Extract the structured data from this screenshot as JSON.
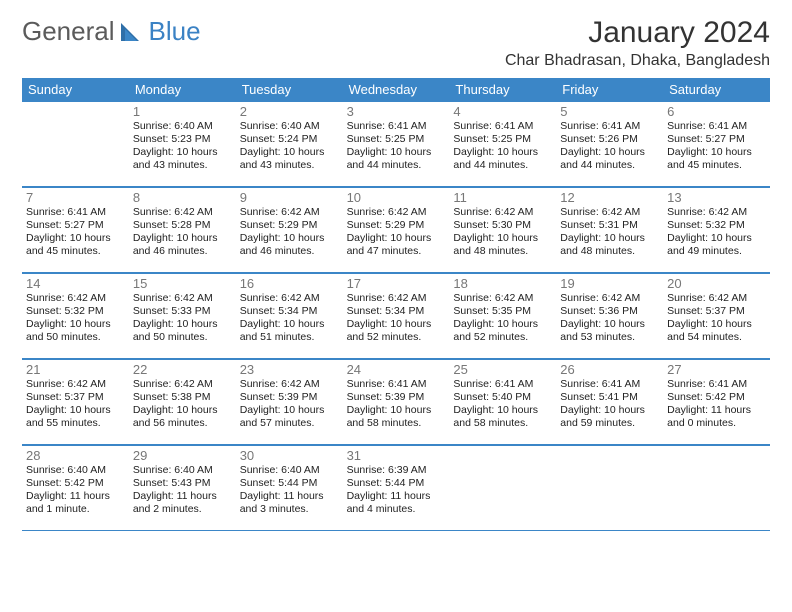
{
  "logo": {
    "text1": "General",
    "text2": "Blue"
  },
  "title": "January 2024",
  "location": "Char Bhadrasan, Dhaka, Bangladesh",
  "colors": {
    "header_bg": "#3b86c7",
    "header_text": "#ffffff",
    "rule": "#3b86c7",
    "daynum": "#777777",
    "body_text": "#222222"
  },
  "dayHeaders": [
    "Sunday",
    "Monday",
    "Tuesday",
    "Wednesday",
    "Thursday",
    "Friday",
    "Saturday"
  ],
  "weeks": [
    [
      {
        "n": "",
        "lines": []
      },
      {
        "n": "1",
        "lines": [
          "Sunrise: 6:40 AM",
          "Sunset: 5:23 PM",
          "Daylight: 10 hours and 43 minutes."
        ]
      },
      {
        "n": "2",
        "lines": [
          "Sunrise: 6:40 AM",
          "Sunset: 5:24 PM",
          "Daylight: 10 hours and 43 minutes."
        ]
      },
      {
        "n": "3",
        "lines": [
          "Sunrise: 6:41 AM",
          "Sunset: 5:25 PM",
          "Daylight: 10 hours and 44 minutes."
        ]
      },
      {
        "n": "4",
        "lines": [
          "Sunrise: 6:41 AM",
          "Sunset: 5:25 PM",
          "Daylight: 10 hours and 44 minutes."
        ]
      },
      {
        "n": "5",
        "lines": [
          "Sunrise: 6:41 AM",
          "Sunset: 5:26 PM",
          "Daylight: 10 hours and 44 minutes."
        ]
      },
      {
        "n": "6",
        "lines": [
          "Sunrise: 6:41 AM",
          "Sunset: 5:27 PM",
          "Daylight: 10 hours and 45 minutes."
        ]
      }
    ],
    [
      {
        "n": "7",
        "lines": [
          "Sunrise: 6:41 AM",
          "Sunset: 5:27 PM",
          "Daylight: 10 hours and 45 minutes."
        ]
      },
      {
        "n": "8",
        "lines": [
          "Sunrise: 6:42 AM",
          "Sunset: 5:28 PM",
          "Daylight: 10 hours and 46 minutes."
        ]
      },
      {
        "n": "9",
        "lines": [
          "Sunrise: 6:42 AM",
          "Sunset: 5:29 PM",
          "Daylight: 10 hours and 46 minutes."
        ]
      },
      {
        "n": "10",
        "lines": [
          "Sunrise: 6:42 AM",
          "Sunset: 5:29 PM",
          "Daylight: 10 hours and 47 minutes."
        ]
      },
      {
        "n": "11",
        "lines": [
          "Sunrise: 6:42 AM",
          "Sunset: 5:30 PM",
          "Daylight: 10 hours and 48 minutes."
        ]
      },
      {
        "n": "12",
        "lines": [
          "Sunrise: 6:42 AM",
          "Sunset: 5:31 PM",
          "Daylight: 10 hours and 48 minutes."
        ]
      },
      {
        "n": "13",
        "lines": [
          "Sunrise: 6:42 AM",
          "Sunset: 5:32 PM",
          "Daylight: 10 hours and 49 minutes."
        ]
      }
    ],
    [
      {
        "n": "14",
        "lines": [
          "Sunrise: 6:42 AM",
          "Sunset: 5:32 PM",
          "Daylight: 10 hours and 50 minutes."
        ]
      },
      {
        "n": "15",
        "lines": [
          "Sunrise: 6:42 AM",
          "Sunset: 5:33 PM",
          "Daylight: 10 hours and 50 minutes."
        ]
      },
      {
        "n": "16",
        "lines": [
          "Sunrise: 6:42 AM",
          "Sunset: 5:34 PM",
          "Daylight: 10 hours and 51 minutes."
        ]
      },
      {
        "n": "17",
        "lines": [
          "Sunrise: 6:42 AM",
          "Sunset: 5:34 PM",
          "Daylight: 10 hours and 52 minutes."
        ]
      },
      {
        "n": "18",
        "lines": [
          "Sunrise: 6:42 AM",
          "Sunset: 5:35 PM",
          "Daylight: 10 hours and 52 minutes."
        ]
      },
      {
        "n": "19",
        "lines": [
          "Sunrise: 6:42 AM",
          "Sunset: 5:36 PM",
          "Daylight: 10 hours and 53 minutes."
        ]
      },
      {
        "n": "20",
        "lines": [
          "Sunrise: 6:42 AM",
          "Sunset: 5:37 PM",
          "Daylight: 10 hours and 54 minutes."
        ]
      }
    ],
    [
      {
        "n": "21",
        "lines": [
          "Sunrise: 6:42 AM",
          "Sunset: 5:37 PM",
          "Daylight: 10 hours and 55 minutes."
        ]
      },
      {
        "n": "22",
        "lines": [
          "Sunrise: 6:42 AM",
          "Sunset: 5:38 PM",
          "Daylight: 10 hours and 56 minutes."
        ]
      },
      {
        "n": "23",
        "lines": [
          "Sunrise: 6:42 AM",
          "Sunset: 5:39 PM",
          "Daylight: 10 hours and 57 minutes."
        ]
      },
      {
        "n": "24",
        "lines": [
          "Sunrise: 6:41 AM",
          "Sunset: 5:39 PM",
          "Daylight: 10 hours and 58 minutes."
        ]
      },
      {
        "n": "25",
        "lines": [
          "Sunrise: 6:41 AM",
          "Sunset: 5:40 PM",
          "Daylight: 10 hours and 58 minutes."
        ]
      },
      {
        "n": "26",
        "lines": [
          "Sunrise: 6:41 AM",
          "Sunset: 5:41 PM",
          "Daylight: 10 hours and 59 minutes."
        ]
      },
      {
        "n": "27",
        "lines": [
          "Sunrise: 6:41 AM",
          "Sunset: 5:42 PM",
          "Daylight: 11 hours and 0 minutes."
        ]
      }
    ],
    [
      {
        "n": "28",
        "lines": [
          "Sunrise: 6:40 AM",
          "Sunset: 5:42 PM",
          "Daylight: 11 hours and 1 minute."
        ]
      },
      {
        "n": "29",
        "lines": [
          "Sunrise: 6:40 AM",
          "Sunset: 5:43 PM",
          "Daylight: 11 hours and 2 minutes."
        ]
      },
      {
        "n": "30",
        "lines": [
          "Sunrise: 6:40 AM",
          "Sunset: 5:44 PM",
          "Daylight: 11 hours and 3 minutes."
        ]
      },
      {
        "n": "31",
        "lines": [
          "Sunrise: 6:39 AM",
          "Sunset: 5:44 PM",
          "Daylight: 11 hours and 4 minutes."
        ]
      },
      {
        "n": "",
        "lines": []
      },
      {
        "n": "",
        "lines": []
      },
      {
        "n": "",
        "lines": []
      }
    ]
  ]
}
